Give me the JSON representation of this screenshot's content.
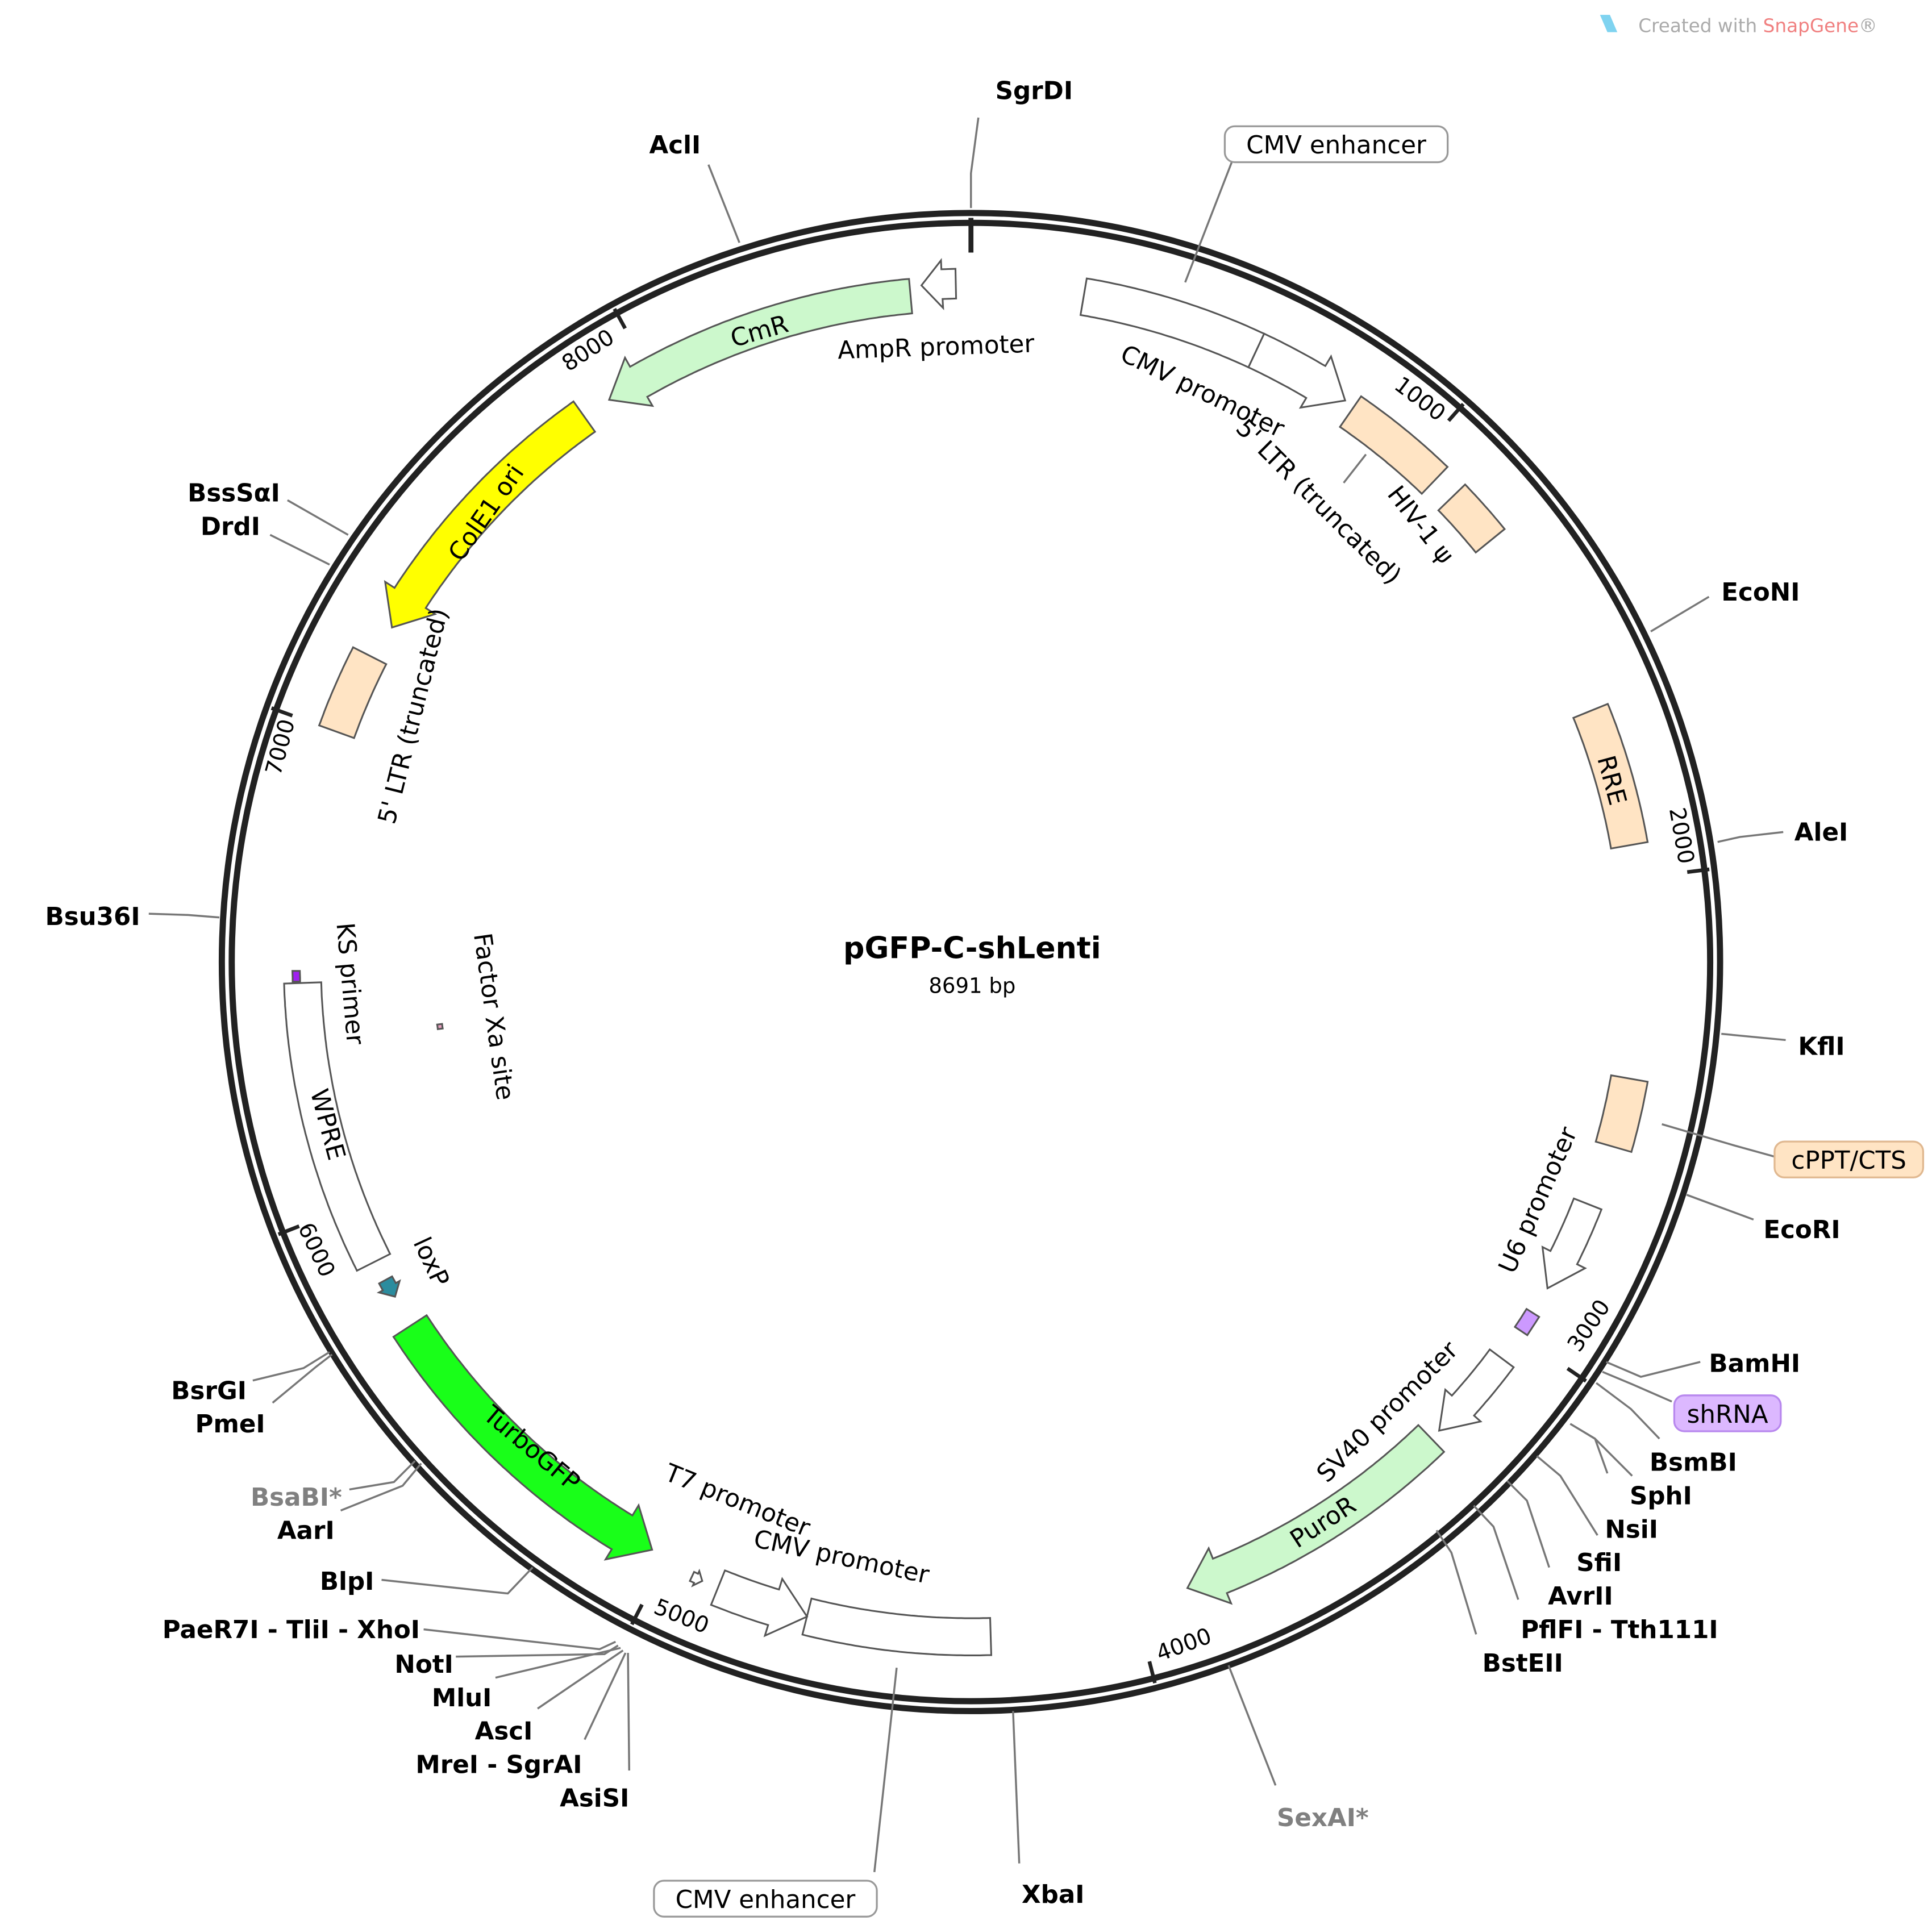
{
  "watermark": {
    "prefix": "Created with ",
    "brand": "SnapGene",
    "suffix": "®"
  },
  "plasmid": {
    "name": "pGFP-C-shLenti",
    "length_label": "8691 bp",
    "length": 8691
  },
  "ticks": [
    "1000",
    "2000",
    "3000",
    "4000",
    "5000",
    "6000",
    "7000",
    "8000"
  ],
  "features": [
    {
      "name": "CmR",
      "start": 7900,
      "end": 8566,
      "dir": -1,
      "color": "#ccf8cc"
    },
    {
      "name": "AmpR promoter",
      "start": 8590,
      "end": 8660,
      "dir": -1,
      "color": "#ffffff"
    },
    {
      "name": "CMV enhancer",
      "start": 232,
      "end": 604,
      "dir": 0,
      "color": "#ffffff"
    },
    {
      "name": "CMV promoter",
      "start": 604,
      "end": 813,
      "dir": 1,
      "color": "#ffffff"
    },
    {
      "name": "5' LTR (truncated)",
      "start": 835,
      "end": 1060,
      "dir": 0,
      "color": "#ffe4c4"
    },
    {
      "name": "HIV-1 ψ",
      "start": 1110,
      "end": 1230,
      "dir": 0,
      "color": "#ffe4c4"
    },
    {
      "name": "RRE",
      "start": 1640,
      "end": 1930,
      "dir": 0,
      "color": "#ffe4c4"
    },
    {
      "name": "cPPT/CTS",
      "start": 2415,
      "end": 2560,
      "dir": 0,
      "color": "#ffe4c4"
    },
    {
      "name": "U6 promoter",
      "start": 2690,
      "end": 2885,
      "dir": 1,
      "color": "#ffffff"
    },
    {
      "name": "shRNA",
      "start": 2945,
      "end": 2990,
      "dir": 0,
      "color": "#cc99ff"
    },
    {
      "name": "SV40 promoter",
      "start": 3060,
      "end": 3260,
      "dir": 1,
      "color": "#ffffff"
    },
    {
      "name": "PuroR",
      "start": 3283,
      "end": 3885,
      "dir": 1,
      "color": "#ccf8cc"
    },
    {
      "name": "CMV enhancer",
      "start": 4305,
      "end": 4685,
      "dir": 0,
      "color": "#ffffff"
    },
    {
      "name": "CMV promoter",
      "start": 4685,
      "end": 4877,
      "dir": -1,
      "color": "#ffffff"
    },
    {
      "name": "T7 promoter",
      "start": 4912,
      "end": 4935,
      "dir": -1,
      "color": "#ffffff"
    },
    {
      "name": "TurboGFP",
      "start": 5033,
      "end": 5722,
      "dir": -1,
      "color": "#19ff19"
    },
    {
      "name": "loxP",
      "start": 5790,
      "end": 5830,
      "dir": -1,
      "color": "#2b8c9e"
    },
    {
      "name": "WPRE",
      "start": 5874,
      "end": 6475,
      "dir": 0,
      "color": "#ffffff"
    },
    {
      "name": "KS primer",
      "start": 6478,
      "end": 6500,
      "dir": 0,
      "color": "#a020f0"
    },
    {
      "name": "Factor Xa site",
      "start": 6345,
      "end": 6357,
      "dir": 0,
      "color": "#e8a0c0"
    },
    {
      "name": "5' LTR (truncated)",
      "start": 7000,
      "end": 7170,
      "dir": 0,
      "color": "#ffe4c4"
    },
    {
      "name": "ColE1 ori",
      "start": 7243,
      "end": 7838,
      "dir": -1,
      "color": "#ffff00"
    }
  ],
  "enzymes": [
    {
      "name": "SgrDI"
    },
    {
      "name": "AclI"
    },
    {
      "name": "EcoNI"
    },
    {
      "name": "AleI"
    },
    {
      "name": "KflI"
    },
    {
      "name": "EcoRI"
    },
    {
      "name": "BamHI"
    },
    {
      "name": "BsmBI"
    },
    {
      "name": "SphI"
    },
    {
      "name": "NsiI"
    },
    {
      "name": "SfiI"
    },
    {
      "name": "AvrII"
    },
    {
      "name": "PflFI - Tth111I"
    },
    {
      "name": "BstEII"
    },
    {
      "name": "SexAI*",
      "color": "#808080"
    },
    {
      "name": "XbaI"
    },
    {
      "name": "AsiSI"
    },
    {
      "name": "MreI - SgrAI"
    },
    {
      "name": "AscI"
    },
    {
      "name": "MluI"
    },
    {
      "name": "NotI"
    },
    {
      "name": "PaeR7I - TliI - XhoI"
    },
    {
      "name": "BlpI"
    },
    {
      "name": "AarI"
    },
    {
      "name": "BsaBI*",
      "color": "#808080"
    },
    {
      "name": "PmeI"
    },
    {
      "name": "BsrGI"
    },
    {
      "name": "Bsu36I"
    },
    {
      "name": "BssSαI"
    },
    {
      "name": "DrdI"
    }
  ]
}
